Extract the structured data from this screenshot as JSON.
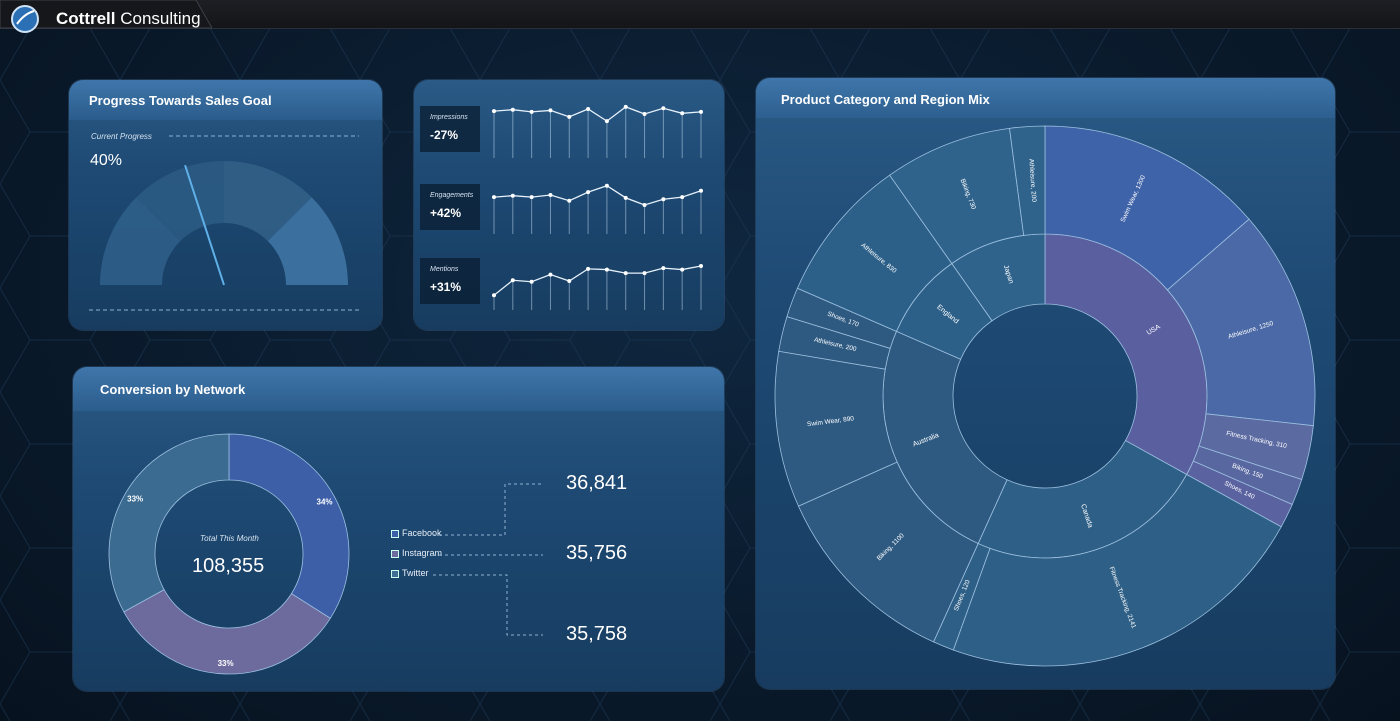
{
  "app": {
    "brand_bold": "Cottrell",
    "brand_rest": " Consulting",
    "logo_icon": "globe-icon"
  },
  "sales_goal": {
    "title": "Progress Towards Sales Goal",
    "current_label": "Current Progress",
    "current_value": "40%",
    "progress_fraction": 0.4
  },
  "social": {
    "rows": [
      {
        "label": "Impressions",
        "value": "-27%",
        "points": [
          9,
          9.2,
          8.9,
          9.1,
          8.2,
          9.3,
          7.6,
          9.6,
          8.6,
          9.4,
          8.7,
          8.9
        ]
      },
      {
        "label": "Engagements",
        "value": "+42%",
        "points": [
          7.6,
          7.8,
          7.6,
          7.9,
          7.1,
          8.3,
          9.2,
          7.5,
          6.5,
          7.3,
          7.6,
          8.5
        ]
      },
      {
        "label": "Mentions",
        "value": "+31%",
        "points": [
          4.5,
          6.6,
          6.4,
          7.4,
          6.5,
          8.2,
          8.1,
          7.6,
          7.6,
          8.3,
          8.1,
          8.6
        ]
      }
    ]
  },
  "conversion": {
    "title": "Conversion by Network",
    "center_label": "Total This Month",
    "center_value": "108,355",
    "legend": [
      {
        "name": "Facebook",
        "value": "36,841",
        "color": "#3c5fa8"
      },
      {
        "name": "Instagram",
        "value": "35,756",
        "color": "#6f6aa0"
      },
      {
        "name": "Twitter",
        "value": "35,758",
        "color": "#3f6f94"
      }
    ],
    "donut": [
      {
        "name": "Facebook",
        "pct_label": "34%",
        "value": 34,
        "color": "#3c5fa8"
      },
      {
        "name": "Instagram",
        "pct_label": "33%",
        "value": 33,
        "color": "#6d6a9e"
      },
      {
        "name": "Twitter",
        "pct_label": "33%",
        "value": 33,
        "color": "#3b6b90"
      }
    ]
  },
  "sunburst": {
    "title": "Product Category and Region Mix",
    "regions": [
      {
        "name": "USA",
        "color": "#5a5fa0",
        "children": [
          {
            "label": "Swim Wear, 1300",
            "value": 1300
          },
          {
            "label": "Athleisure, 1250",
            "value": 1250
          },
          {
            "label": "Fitness Tracking, 310",
            "value": 310
          },
          {
            "label": "Biking, 150",
            "value": 150
          },
          {
            "label": "Shoes, 140",
            "value": 140
          }
        ]
      },
      {
        "name": "Canada",
        "color": "#2e5f86",
        "children": [
          {
            "label": "Fitness Tracking, 2141",
            "value": 2141
          },
          {
            "label": "Shoes, 120",
            "value": 120
          }
        ]
      },
      {
        "name": "Australia",
        "color": "#2e5a82",
        "children": [
          {
            "label": "Biking, 1100",
            "value": 1100
          },
          {
            "label": "Swim Wear, 890",
            "value": 890
          },
          {
            "label": "Athleisure, 200",
            "value": 200
          },
          {
            "label": "Shoes, 170",
            "value": 170
          }
        ]
      },
      {
        "name": "England",
        "color": "#2d6089",
        "children": [
          {
            "label": "Athleisure, 830",
            "value": 830
          }
        ]
      },
      {
        "name": "Japan",
        "color": "#2f638c",
        "children": [
          {
            "label": "Biking, 730",
            "value": 730
          },
          {
            "label": "Athleisure, 200",
            "value": 200
          }
        ]
      }
    ]
  }
}
